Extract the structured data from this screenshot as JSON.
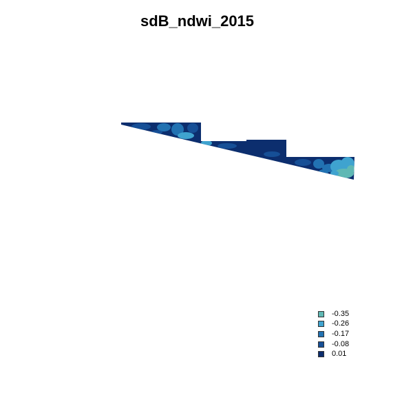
{
  "title": "sdB_ndwi_2015",
  "legend": {
    "items": [
      {
        "label": "-0.35",
        "color": "#5fb8b4"
      },
      {
        "label": "-0.26",
        "color": "#3fa3cf"
      },
      {
        "label": "-0.17",
        "color": "#2272b2"
      },
      {
        "label": "-0.08",
        "color": "#164f96"
      },
      {
        "label": "0.01",
        "color": "#0c2e6e"
      }
    ]
  }
}
